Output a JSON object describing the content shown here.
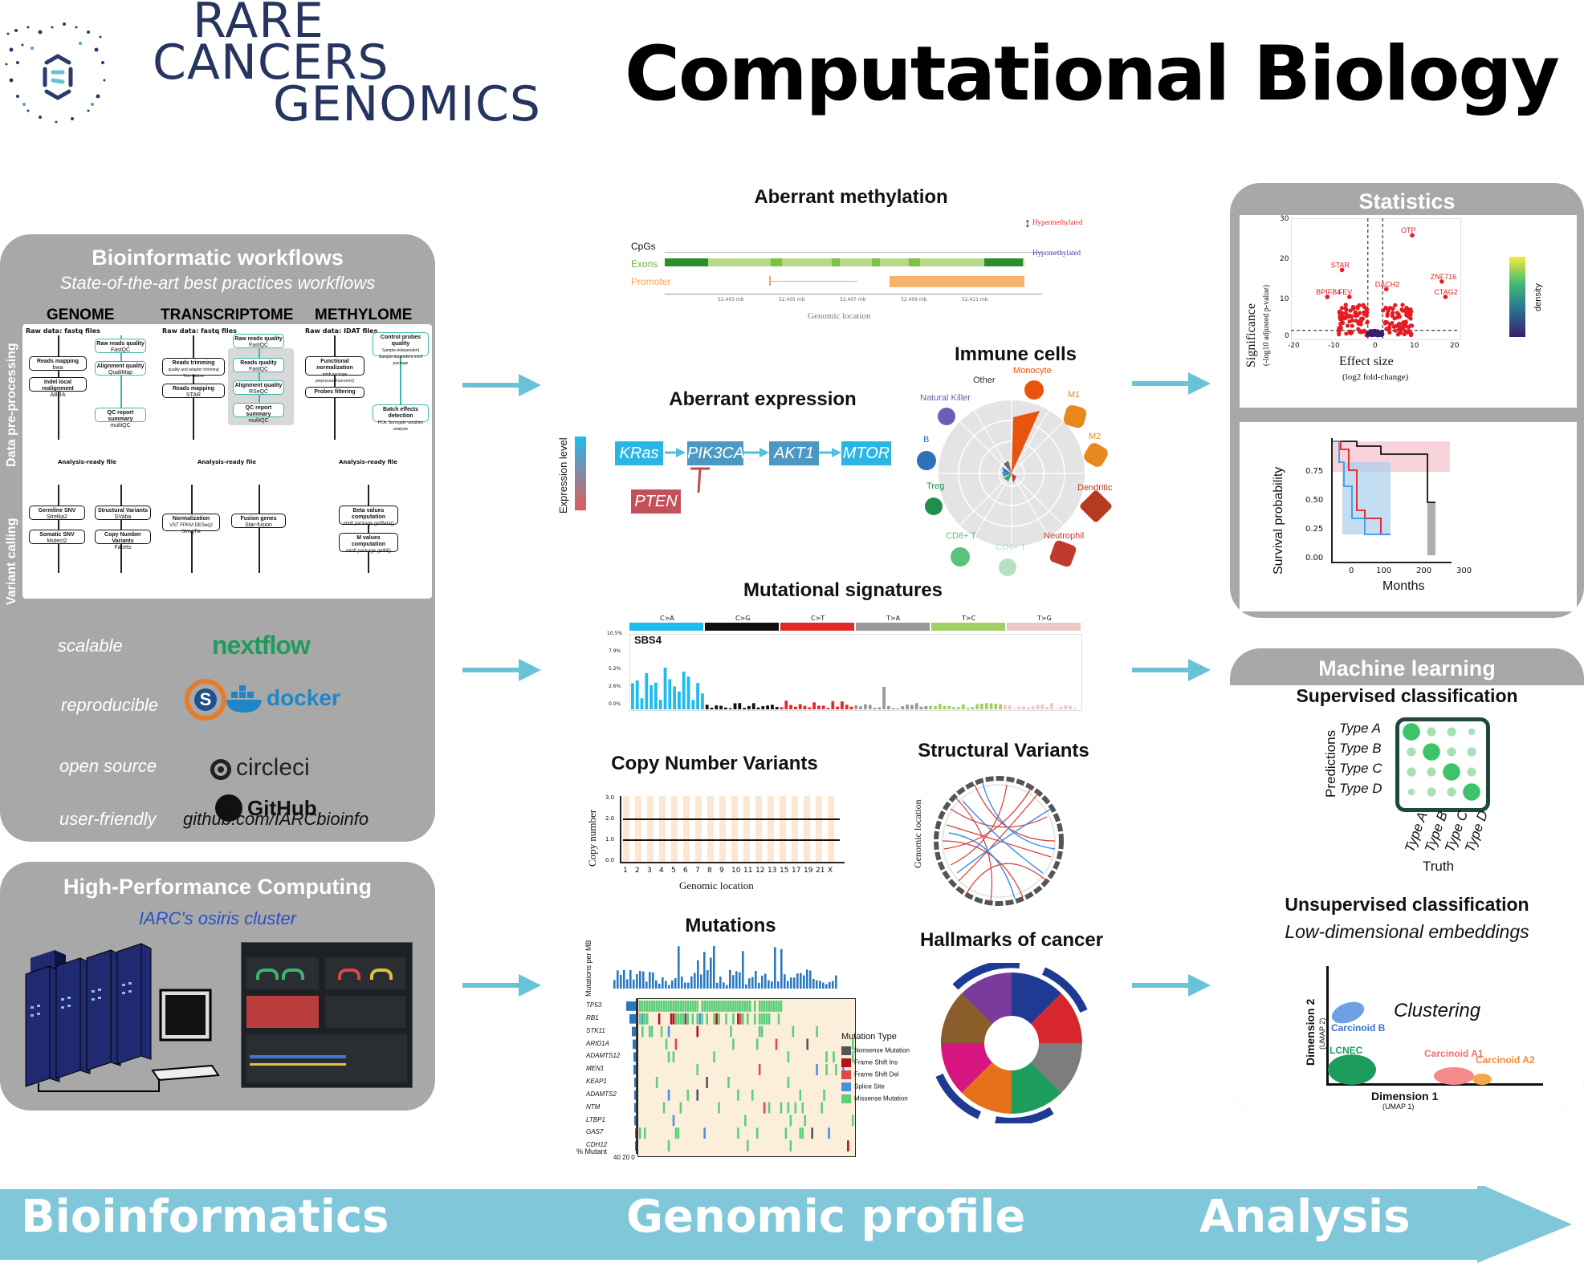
{
  "header": {
    "logo_line1": "RARE",
    "logo_line2": "CANCERS",
    "logo_line3": "GENOMICS",
    "main_title": "Computational Biology"
  },
  "colors": {
    "panel": "#a8a8a8",
    "arrow": "#69c3d8",
    "teal": "#3cb8a8"
  },
  "bioinfo": {
    "title": "Bioinformatic workflows",
    "subtitle": "State-of-the-art best practices workflows",
    "columns": [
      "GENOME",
      "TRANSCRIPTOME",
      "METHYLOME"
    ],
    "side_labels": [
      "Data pre-processing",
      "Variant calling"
    ],
    "raw_data": [
      "Raw data: fastq files",
      "Raw data: fastq files",
      "Raw data: IDAT files"
    ],
    "analysis_ready": "Analysis-ready file",
    "genome_pre": [
      {
        "t": "Reads mapping",
        "s": "bwa"
      },
      {
        "t": "Indel local realignment",
        "s": "ABRA"
      },
      {
        "t": "Raw reads quality",
        "s": "FastQC"
      },
      {
        "t": "Alignment quality",
        "s": "QualiMap"
      },
      {
        "t": "QC report summary",
        "s": "multiQC"
      }
    ],
    "transcriptome_pre": [
      {
        "t": "Reads trimming",
        "s": "quality and adapter trimming Trim Galore"
      },
      {
        "t": "Reads mapping",
        "s": "STAR"
      },
      {
        "t": "Raw reads quality",
        "s": "FastQC"
      },
      {
        "t": "Reads quality",
        "s": "FastQC"
      },
      {
        "t": "Alignment quality",
        "s": "RSeQC"
      },
      {
        "t": "QC report summary",
        "s": "multiQC"
      }
    ],
    "methylome_pre": [
      {
        "t": "Functional normalization",
        "s": "minfi package preprocessFunnorm()"
      },
      {
        "t": "Probes filtering",
        "s": ""
      },
      {
        "t": "Control probes quality",
        "s": "Sample-independent Sample-dependent minfi package"
      },
      {
        "t": "Batch effects detection",
        "s": "PCA, Surrogate variables analysis"
      }
    ],
    "genome_vc": [
      {
        "t": "Germline SNV",
        "s": "Strelka2"
      },
      {
        "t": "Somatic SNV",
        "s": "Mutect2"
      },
      {
        "t": "Structural Variants",
        "s": "SVaba"
      },
      {
        "t": "Copy Number Variants",
        "s": "Facets"
      }
    ],
    "transcriptome_vc": [
      {
        "t": "Normalization",
        "s": "VST FPKM DESeq2 StringTie"
      },
      {
        "t": "Fusion genes",
        "s": "Star-fusion"
      }
    ],
    "methylome_vc": [
      {
        "t": "Beta values computation",
        "s": "minfi package getBeta()"
      },
      {
        "t": "M values computation",
        "s": "minfi package getM()"
      }
    ],
    "values": [
      "scalable",
      "reproducible",
      "open source",
      "user-friendly"
    ],
    "tools": [
      "nextflow",
      "docker",
      "circleci",
      "GitHub"
    ],
    "github_url": "github.com/IARCbioinfo"
  },
  "hpc": {
    "title": "High-Performance Computing",
    "subtitle": "IARC's osiris cluster"
  },
  "genomic": {
    "methylation": {
      "title": "Aberrant methylation",
      "rows": [
        "CpGs",
        "Exons",
        "Promoter"
      ],
      "legend_hyper": "Hypermethylated",
      "legend_hypo": "Hypomethylated",
      "xlabel": "Genomic location",
      "ticks": [
        "52.403 mb",
        "52.405 mb",
        "52.407 mb",
        "52.409 mb",
        "52.411 mb"
      ]
    },
    "expression": {
      "title": "Aberrant expression",
      "ylabel": "Expression level",
      "genes": [
        "KRas",
        "PIK3CA",
        "AKT1",
        "MTOR"
      ],
      "inhibitor": "PTEN"
    },
    "immune": {
      "title": "Immune cells",
      "cells": [
        "Other",
        "Monocyte",
        "M1",
        "M2",
        "Dendritic",
        "Neutrophil",
        "CD4+ T",
        "CD8+ T",
        "Treg",
        "B",
        "Natural Killer"
      ]
    },
    "signatures": {
      "title": "Mutational signatures",
      "classes": [
        "C>A",
        "C>G",
        "C>T",
        "T>A",
        "T>C",
        "T>G"
      ],
      "class_colors": [
        "#1ebbee",
        "#111111",
        "#e22926",
        "#999999",
        "#a1cf64",
        "#edc8c5"
      ],
      "label": "SBS4",
      "yticks": [
        "10.5%",
        "7.9%",
        "5.2%",
        "2.6%",
        "0.0%"
      ]
    },
    "cnv": {
      "title": "Copy Number Variants",
      "ylabel": "Copy number",
      "xlabel": "Genomic location",
      "yticks": [
        "3.0",
        "2.0",
        "1.0",
        "0.0"
      ],
      "chroms": [
        "1",
        "2",
        "3",
        "4",
        "5",
        "6",
        "7",
        "8",
        "9",
        "10",
        "11",
        "12",
        "13",
        "15",
        "17",
        "19",
        "21",
        "X"
      ]
    },
    "sv": {
      "title": "Structural Variants",
      "ylabel": "Genomic location"
    },
    "mutations": {
      "title": "Mutations",
      "ylabel": "Mutations per MB",
      "genes": [
        "TP53",
        "RB1",
        "STK11",
        "ARID1A",
        "ADAMTS12",
        "MEN1",
        "KEAP1",
        "ADAMTS2",
        "NTM",
        "LTBP1",
        "GAS7",
        "CDH12"
      ],
      "xlabel": "% Mutant",
      "xticks": [
        "40",
        "20",
        "0"
      ],
      "legend_title": "Mutation Type",
      "legend": [
        "Nonsense Mutation",
        "Frame Shift Ins",
        "Frame Shift Del",
        "Splice Site",
        "Missense Mutation"
      ],
      "legend_colors": [
        "#555555",
        "#b3121b",
        "#e0474c",
        "#4a90e2",
        "#5ccf7a"
      ]
    },
    "hallmarks": {
      "title": "Hallmarks of cancer"
    }
  },
  "stats": {
    "title": "Statistics",
    "volcano": {
      "ylabel": "Significance",
      "ylabel_sub": "(-log10 adjusted p-value)",
      "xlabel": "Effect size",
      "xlabel_sub": "(log2 fold-change)",
      "xticks": [
        "-20",
        "-10",
        "0",
        "10",
        "20"
      ],
      "yticks": [
        "30",
        "20",
        "10",
        "0"
      ],
      "legend": "density",
      "genes": [
        "OTP",
        "STAR",
        "ZNF716",
        "BPIFB4",
        "FEV",
        "DACH2",
        "CTAG2"
      ]
    },
    "survival": {
      "ylabel": "Survival probability",
      "xlabel": "Months",
      "yticks": [
        "0.75",
        "0.50",
        "0.25",
        "0.00"
      ],
      "xticks": [
        "0",
        "100",
        "200",
        "300"
      ]
    }
  },
  "ml": {
    "title": "Machine learning",
    "supervised": "Supervised classification",
    "pred_label": "Predictions",
    "truth_label": "Truth",
    "types": [
      "Type A",
      "Type B",
      "Type C",
      "Type D"
    ],
    "confusion": [
      [
        3,
        1,
        1,
        0.5
      ],
      [
        1,
        3,
        1,
        1
      ],
      [
        1,
        1,
        3,
        1
      ],
      [
        0.5,
        1,
        1,
        3
      ]
    ],
    "unsupervised": "Unsupervised classification",
    "embeddings": "Low-dimensional embeddings",
    "clustering": "Clustering",
    "dim1": "Dimension 1",
    "dim1_sub": "(UMAP 1)",
    "dim2": "Dimension 2",
    "dim2_sub": "(UMAP 2)",
    "clusters": [
      "Carcinoid B",
      "LCNEC",
      "Carcinoid A1",
      "Carcinoid A2"
    ]
  },
  "footer": {
    "left": "Bioinformatics",
    "middle": "Genomic profile",
    "right": "Analysis"
  }
}
